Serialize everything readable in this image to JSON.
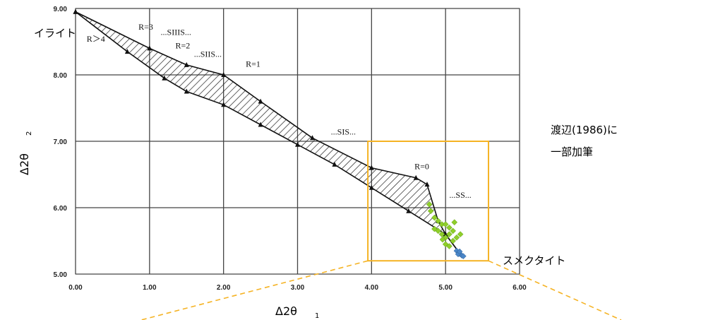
{
  "chart_data": {
    "type": "scatter",
    "xlabel": "Δ2θ",
    "xlabel_sub": "1",
    "ylabel": "Δ2θ",
    "ylabel_sub": "2",
    "xlim": [
      0,
      6
    ],
    "ylim": [
      5,
      9
    ],
    "x_ticks": [
      "0.00",
      "1.00",
      "2.00",
      "3.00",
      "4.00",
      "5.00",
      "6.00"
    ],
    "y_ticks": [
      "5.00",
      "6.00",
      "7.00",
      "8.00",
      "9.00"
    ],
    "grid": true,
    "upper_boundary": [
      [
        0.0,
        8.95
      ],
      [
        1.0,
        8.4
      ],
      [
        1.5,
        8.15
      ],
      [
        2.0,
        8.0
      ],
      [
        2.5,
        7.6
      ],
      [
        3.2,
        7.05
      ],
      [
        4.0,
        6.6
      ],
      [
        4.6,
        6.45
      ],
      [
        4.75,
        6.35
      ],
      [
        4.9,
        5.8
      ],
      [
        5.0,
        5.6
      ],
      [
        5.2,
        5.3
      ]
    ],
    "lower_boundary": [
      [
        0.0,
        8.95
      ],
      [
        0.7,
        8.35
      ],
      [
        1.2,
        7.95
      ],
      [
        1.5,
        7.75
      ],
      [
        2.0,
        7.55
      ],
      [
        2.5,
        7.25
      ],
      [
        3.0,
        6.95
      ],
      [
        3.5,
        6.65
      ],
      [
        4.0,
        6.3
      ],
      [
        4.5,
        5.95
      ],
      [
        5.0,
        5.6
      ],
      [
        5.2,
        5.3
      ]
    ],
    "green_points": [
      [
        4.78,
        6.05
      ],
      [
        4.8,
        5.95
      ],
      [
        4.85,
        5.85
      ],
      [
        4.9,
        5.8
      ],
      [
        4.95,
        5.75
      ],
      [
        5.0,
        5.75
      ],
      [
        5.05,
        5.7
      ],
      [
        5.1,
        5.65
      ],
      [
        4.9,
        5.65
      ],
      [
        4.95,
        5.6
      ],
      [
        5.0,
        5.55
      ],
      [
        5.05,
        5.6
      ],
      [
        5.15,
        5.55
      ],
      [
        5.2,
        5.6
      ],
      [
        5.1,
        5.5
      ],
      [
        5.0,
        5.45
      ],
      [
        5.05,
        5.42
      ],
      [
        4.85,
        5.68
      ],
      [
        5.12,
        5.78
      ],
      [
        4.96,
        5.52
      ]
    ],
    "blue_points": [
      [
        5.15,
        5.35
      ],
      [
        5.18,
        5.32
      ],
      [
        5.2,
        5.3
      ],
      [
        5.22,
        5.28
      ],
      [
        5.17,
        5.3
      ],
      [
        5.24,
        5.27
      ],
      [
        5.19,
        5.34
      ]
    ],
    "annotations": [
      {
        "text": "R=3",
        "x": 0.85,
        "y": 8.68
      },
      {
        "text": "...SIIIS...",
        "x": 1.15,
        "y": 8.6
      },
      {
        "text": "R=2",
        "x": 1.35,
        "y": 8.4
      },
      {
        "text": "...SIIS...",
        "x": 1.6,
        "y": 8.27
      },
      {
        "text": "R=1",
        "x": 2.3,
        "y": 8.12
      },
      {
        "text": "R＞4",
        "x": 0.15,
        "y": 8.5
      },
      {
        "text": "...SIS...",
        "x": 3.45,
        "y": 7.1
      },
      {
        "text": "R=0",
        "x": 4.58,
        "y": 6.58
      },
      {
        "text": "...SS...",
        "x": 5.05,
        "y": 6.15
      }
    ],
    "highlight_box": {
      "x0": 3.95,
      "x1": 5.58,
      "y0": 5.2,
      "y1": 7.0
    },
    "labels": {
      "illite": "イライト",
      "smectite": "スメクタイト",
      "note_line1": "渡辺(1986)に",
      "note_line2": "一部加筆"
    }
  }
}
